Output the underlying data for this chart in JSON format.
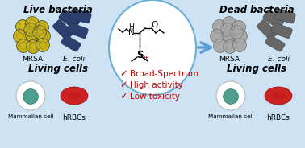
{
  "background_color": "#cde3f4",
  "border_color": "#6aaed6",
  "top_left_label": "Live bacteria",
  "top_right_label": "Dead bacteria",
  "bottom_left_label": "Living cells",
  "bottom_right_label": "Living cells",
  "mrsa_label_left": "MRSA",
  "ecoli_label_left": "E. coli",
  "mrsa_label_right": "MRSA",
  "ecoli_label_right": "E. coli",
  "mammalian_label_left": "Mammalian cell",
  "hrbc_label_left": "hRBCs",
  "mammalian_label_right": "Mammalian cell",
  "hrbc_label_right": "hRBCs",
  "checkmarks": [
    "Broad-Spectrum",
    "High activity",
    "Low toxicity"
  ],
  "checkmark_color": "#cc0000",
  "arrow_color": "#5b9bd5",
  "oval_color": "#6aaed6",
  "mrsa_live_color": "#c8b41a",
  "mrsa_dead_color": "#aaaaaa",
  "ecoli_live_color": "#2d3f6e",
  "ecoli_dead_color": "#666666",
  "mammalian_outer": "#e8e8e8",
  "mammalian_inner": "#4da090",
  "rbc_color": "#cc2222",
  "label_fontsize": 8.5,
  "sublabel_fontsize": 6.5,
  "check_fontsize": 7.5
}
